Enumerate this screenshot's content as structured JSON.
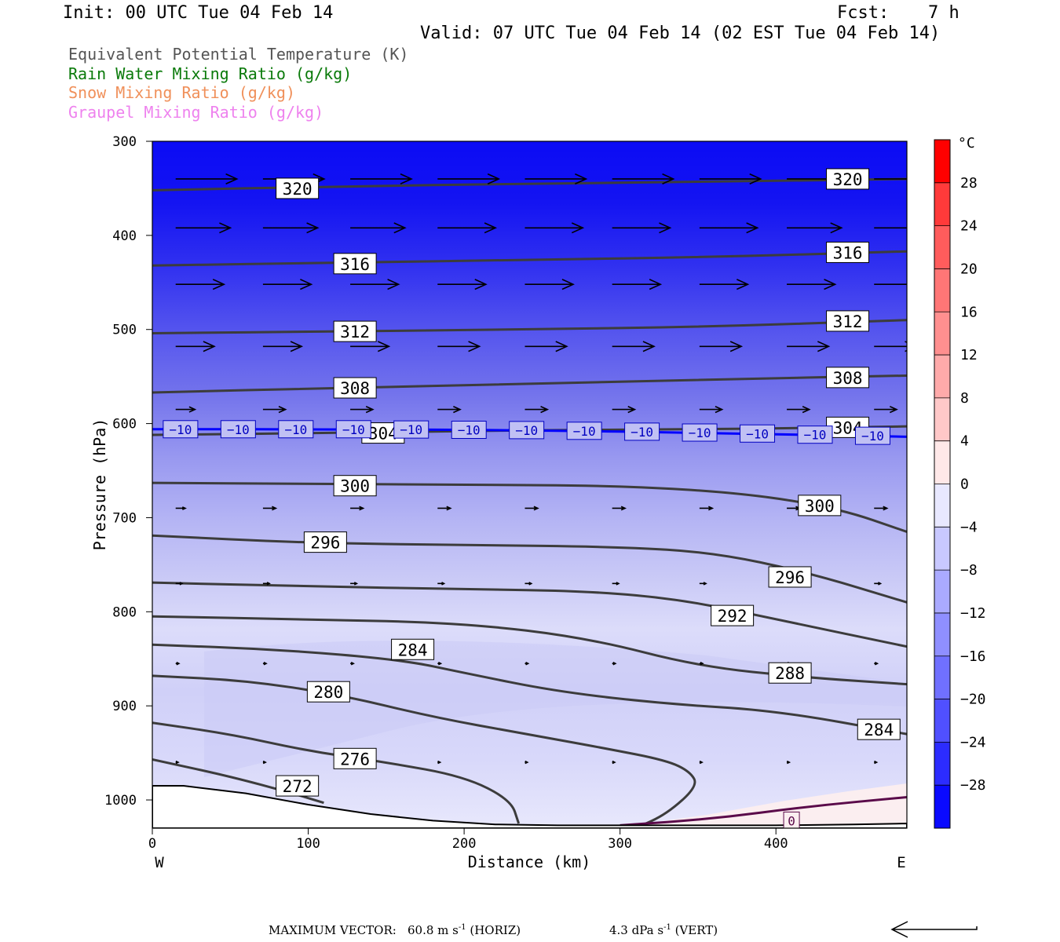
{
  "header": {
    "init": "Init: 00 UTC Tue 04 Feb 14",
    "fcst_label": "Fcst:",
    "fcst_value": "7 h",
    "valid": "Valid: 07 UTC Tue 04 Feb 14 (02 EST Tue 04 Feb 14)"
  },
  "legend": [
    {
      "label": "Equivalent Potential Temperature (K)",
      "color": "#555555"
    },
    {
      "label": "Rain Water Mixing Ratio (g/kg)",
      "color": "#0a7a0a"
    },
    {
      "label": "Snow Mixing Ratio (g/kg)",
      "color": "#f0905a"
    },
    {
      "label": "Graupel Mixing Ratio (g/kg)",
      "color": "#ee82ee"
    }
  ],
  "chart_data": {
    "type": "cross-section",
    "xlabel": "Distance (km)",
    "ylabel": "Pressure (hPa)",
    "xlim": [
      0,
      484
    ],
    "ylim": [
      1030,
      300
    ],
    "x_ticks": [
      0,
      100,
      200,
      300,
      400
    ],
    "y_ticks": [
      300,
      400,
      500,
      600,
      700,
      800,
      900,
      1000
    ],
    "x_left_label": "W",
    "x_right_label": "E",
    "colorbar": {
      "unit": "°C",
      "ticks": [
        28,
        24,
        20,
        16,
        12,
        8,
        4,
        0,
        -4,
        -8,
        -12,
        -16,
        -20,
        -24,
        -28
      ],
      "range": [
        -32,
        32
      ]
    },
    "theta_e_contours": [
      {
        "value": 320,
        "x": [
          0,
          120,
          240,
          360,
          484
        ],
        "p": [
          352,
          348,
          345,
          343,
          340
        ],
        "labels": [
          {
            "x": 93,
            "p": 350
          },
          {
            "x": 446,
            "p": 340
          }
        ]
      },
      {
        "value": 316,
        "x": [
          0,
          120,
          240,
          360,
          484
        ],
        "p": [
          432,
          429,
          426,
          423,
          417
        ],
        "labels": [
          {
            "x": 130,
            "p": 430
          },
          {
            "x": 446,
            "p": 418
          }
        ]
      },
      {
        "value": 312,
        "x": [
          0,
          120,
          240,
          360,
          484
        ],
        "p": [
          504,
          502,
          500,
          497,
          490
        ],
        "labels": [
          {
            "x": 130,
            "p": 502
          },
          {
            "x": 446,
            "p": 491
          }
        ]
      },
      {
        "value": 308,
        "x": [
          0,
          120,
          240,
          360,
          484
        ],
        "p": [
          567,
          562,
          558,
          553,
          549
        ],
        "labels": [
          {
            "x": 130,
            "p": 562
          },
          {
            "x": 446,
            "p": 551
          }
        ]
      },
      {
        "value": 304,
        "x": [
          0,
          120,
          240,
          360,
          484
        ],
        "p": [
          612,
          610,
          607,
          606,
          603
        ],
        "labels": [
          {
            "x": 148,
            "p": 610
          },
          {
            "x": 446,
            "p": 604
          }
        ]
      },
      {
        "value": 300,
        "x": [
          0,
          100,
          200,
          300,
          380,
          440,
          484
        ],
        "p": [
          663,
          664,
          665,
          666,
          674,
          690,
          715
        ],
        "labels": [
          {
            "x": 130,
            "p": 666
          },
          {
            "x": 428,
            "p": 687
          }
        ]
      },
      {
        "value": 296,
        "x": [
          0,
          100,
          200,
          300,
          360,
          420,
          484
        ],
        "p": [
          719,
          727,
          729,
          731,
          737,
          758,
          790
        ],
        "labels": [
          {
            "x": 111,
            "p": 726
          },
          {
            "x": 409,
            "p": 763
          }
        ]
      },
      {
        "value": 292,
        "x": [
          0,
          100,
          200,
          280,
          340,
          400,
          484
        ],
        "p": [
          769,
          773,
          776,
          778,
          787,
          808,
          837
        ],
        "labels": [
          {
            "x": 372,
            "p": 804
          }
        ]
      },
      {
        "value": 288,
        "x": [
          0,
          100,
          200,
          280,
          350,
          420,
          484
        ],
        "p": [
          805,
          808,
          812,
          828,
          858,
          870,
          877
        ],
        "labels": [
          {
            "x": 409,
            "p": 865
          }
        ]
      },
      {
        "value": 284,
        "x": [
          0,
          80,
          160,
          200,
          260,
          330,
          400,
          484
        ],
        "p": [
          835,
          840,
          851,
          865,
          885,
          898,
          905,
          930
        ],
        "labels": [
          {
            "x": 167,
            "p": 840
          },
          {
            "x": 466,
            "p": 925
          }
        ]
      },
      {
        "value": 280,
        "x": [
          0,
          60,
          120,
          180,
          240,
          290,
          330,
          345,
          350,
          330,
          310
        ],
        "p": [
          868,
          873,
          888,
          912,
          930,
          945,
          958,
          970,
          985,
          1015,
          1030
        ],
        "labels": [
          {
            "x": 113,
            "p": 885
          }
        ]
      },
      {
        "value": 276,
        "x": [
          0,
          50,
          100,
          150,
          200,
          230,
          235
        ],
        "p": [
          918,
          930,
          948,
          960,
          975,
          1000,
          1025
        ],
        "labels": [
          {
            "x": 130,
            "p": 956
          }
        ]
      },
      {
        "value": 272,
        "x": [
          0,
          50,
          90,
          110
        ],
        "p": [
          957,
          975,
          993,
          1003
        ],
        "labels": [
          {
            "x": 93,
            "p": 985
          }
        ]
      }
    ],
    "temperature_contours": [
      {
        "value": -10,
        "x": [
          0,
          120,
          240,
          360,
          484
        ],
        "p": [
          606,
          606,
          607,
          610,
          614
        ]
      },
      {
        "value": 0,
        "x": [
          300,
          360,
          420,
          484
        ],
        "p": [
          1027,
          1020,
          1007,
          997
        ]
      }
    ],
    "terrain_pressure": {
      "x": [
        0,
        20,
        60,
        100,
        140,
        180,
        220,
        260,
        300,
        350,
        400,
        450,
        484
      ],
      "p": [
        985,
        985,
        993,
        1005,
        1015,
        1022,
        1026,
        1027,
        1027,
        1027,
        1027,
        1026,
        1025
      ]
    },
    "wind_vectors": {
      "x": [
        20,
        76,
        132,
        188,
        244,
        300,
        356,
        412,
        468
      ],
      "p": [
        340,
        392,
        452,
        518,
        585,
        690,
        770,
        855,
        960
      ],
      "relative_u": [
        [
          0.95,
          0.95,
          0.95,
          0.95,
          0.95,
          0.95,
          0.95,
          0.95,
          0.95
        ],
        [
          0.85,
          0.85,
          0.85,
          0.9,
          0.9,
          0.9,
          0.9,
          0.85,
          0.9
        ],
        [
          0.75,
          0.75,
          0.75,
          0.75,
          0.75,
          0.75,
          0.75,
          0.75,
          0.75
        ],
        [
          0.6,
          0.6,
          0.6,
          0.65,
          0.65,
          0.65,
          0.65,
          0.65,
          0.65
        ],
        [
          0.3,
          0.35,
          0.35,
          0.35,
          0.35,
          0.35,
          0.35,
          0.35,
          0.35
        ],
        [
          0.15,
          0.2,
          0.2,
          0.2,
          0.2,
          0.2,
          0.2,
          0.2,
          0.2
        ],
        [
          0.1,
          0.1,
          0.1,
          0.1,
          0.1,
          0.1,
          0.1,
          0.1,
          0.1
        ],
        [
          0.05,
          0.05,
          0.05,
          0.05,
          0.05,
          0.05,
          0.05,
          0.05,
          0.05
        ],
        [
          0.04,
          0.04,
          0.04,
          0.04,
          0.04,
          0.04,
          0.04,
          0.04,
          0.04
        ]
      ]
    }
  },
  "footer": {
    "max_vector_label": "MAXIMUM VECTOR:",
    "horiz_value": "60.8 m s",
    "horiz_exp": "-1",
    "horiz_tail": " (HORIZ)",
    "vert_value": "4.3 dPa s",
    "vert_exp": "-1",
    "vert_tail": " (VERT)"
  },
  "colors": {
    "theta_e": "#3c3c3c",
    "temp_neg": "#0000ff",
    "temp_zero": "#5a0a4a",
    "terrain_fill": "#ffffff"
  }
}
